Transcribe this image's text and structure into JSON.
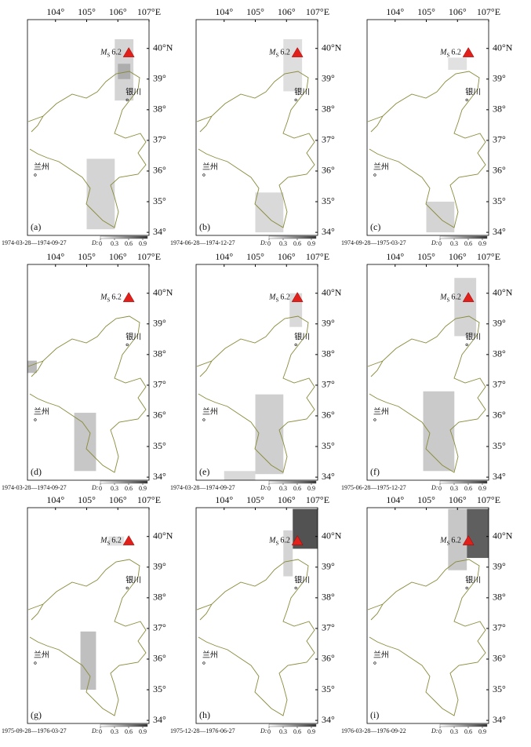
{
  "lon_ticks": [
    {
      "value": 104,
      "label": "104°"
    },
    {
      "value": 105,
      "label": "105°"
    },
    {
      "value": 106,
      "label": "106°"
    },
    {
      "value": 107,
      "label": "107°E"
    }
  ],
  "lat_ticks": [
    {
      "value": 40,
      "label": "40°N"
    },
    {
      "value": 39,
      "label": "39°"
    },
    {
      "value": 38,
      "label": "38°"
    },
    {
      "value": 37,
      "label": "37°"
    },
    {
      "value": 36,
      "label": "36°"
    },
    {
      "value": 35,
      "label": "35°"
    },
    {
      "value": 34,
      "label": "34°"
    }
  ],
  "lon_range": [
    103.1,
    107.0
  ],
  "lat_range": [
    33.9,
    40.94
  ],
  "event": {
    "symbol": "M",
    "subscript": "S",
    "magnitude": "6.2",
    "lon": 106.35,
    "lat": 39.85
  },
  "cities": [
    {
      "name": "银川",
      "lon": 106.25,
      "lat": 38.5
    },
    {
      "name": "兰州",
      "lon": 103.3,
      "lat": 36.05
    }
  ],
  "colorbar_label": "D:",
  "colorbar_range": [
    0,
    1
  ],
  "colorbar_ticks": [
    0,
    0.3,
    0.6,
    0.9
  ],
  "panels": [
    {
      "letter": "(a)",
      "period": "1974-03-28—1974-09-27",
      "patches": [
        {
          "lon": [
            105.9,
            106.5
          ],
          "lat": [
            38.3,
            40.3
          ],
          "d": 0.1
        },
        {
          "lon": [
            106.0,
            106.4
          ],
          "lat": [
            39.0,
            39.5
          ],
          "d": 0.25
        },
        {
          "lon": [
            105.0,
            105.9
          ],
          "lat": [
            34.1,
            36.4
          ],
          "d": 0.1
        }
      ]
    },
    {
      "letter": "(b)",
      "period": "1974-06-28—1974-12-27",
      "patches": [
        {
          "lon": [
            105.9,
            106.5
          ],
          "lat": [
            38.6,
            40.3
          ],
          "d": 0.06
        },
        {
          "lon": [
            105.0,
            105.9
          ],
          "lat": [
            34.0,
            35.3
          ],
          "d": 0.08
        }
      ]
    },
    {
      "letter": "(c)",
      "period": "1974-09-28—1975-03-27",
      "patches": [
        {
          "lon": [
            105.7,
            106.3
          ],
          "lat": [
            39.3,
            39.7
          ],
          "d": 0.05
        },
        {
          "lon": [
            105.0,
            105.9
          ],
          "lat": [
            34.0,
            35.0
          ],
          "d": 0.1
        }
      ]
    },
    {
      "letter": "(d)",
      "period": "1974-03-28—1974-09-27",
      "patches": [
        {
          "lon": [
            103.1,
            103.4
          ],
          "lat": [
            37.4,
            37.8
          ],
          "d": 0.2
        },
        {
          "lon": [
            104.6,
            105.3
          ],
          "lat": [
            34.2,
            36.1
          ],
          "d": 0.15
        }
      ]
    },
    {
      "letter": "(e)",
      "period": "1974-03-28—1974-09-27",
      "patches": [
        {
          "lon": [
            106.1,
            106.5
          ],
          "lat": [
            38.9,
            40.0
          ],
          "d": 0.08
        },
        {
          "lon": [
            105.0,
            105.9
          ],
          "lat": [
            34.1,
            36.7
          ],
          "d": 0.12
        },
        {
          "lon": [
            104.0,
            105.0
          ],
          "lat": [
            33.9,
            34.2
          ],
          "d": 0.08
        }
      ]
    },
    {
      "letter": "(f)",
      "period": "1975-06-28—1975-12-27",
      "patches": [
        {
          "lon": [
            105.9,
            106.6
          ],
          "lat": [
            38.6,
            40.5
          ],
          "d": 0.1
        },
        {
          "lon": [
            104.9,
            105.9
          ],
          "lat": [
            34.2,
            36.8
          ],
          "d": 0.14
        }
      ]
    },
    {
      "letter": "(g)",
      "period": "1975-09-28—1976-03-27",
      "patches": [
        {
          "lon": [
            105.7,
            106.2
          ],
          "lat": [
            39.7,
            40.0
          ],
          "d": 0.05
        },
        {
          "lon": [
            104.8,
            105.3
          ],
          "lat": [
            35.0,
            36.9
          ],
          "d": 0.18
        }
      ]
    },
    {
      "letter": "(h)",
      "period": "1975-12-28—1976-06-27",
      "patches": [
        {
          "lon": [
            106.2,
            107.0
          ],
          "lat": [
            39.6,
            40.9
          ],
          "d": 0.6
        },
        {
          "lon": [
            105.9,
            106.2
          ],
          "lat": [
            38.7,
            40.2
          ],
          "d": 0.1
        }
      ]
    },
    {
      "letter": "(i)",
      "period": "1976-03-28—1976-09-22",
      "patches": [
        {
          "lon": [
            106.3,
            107.0
          ],
          "lat": [
            39.3,
            40.9
          ],
          "d": 0.55
        },
        {
          "lon": [
            105.7,
            106.3
          ],
          "lat": [
            38.9,
            40.9
          ],
          "d": 0.15
        }
      ]
    }
  ]
}
